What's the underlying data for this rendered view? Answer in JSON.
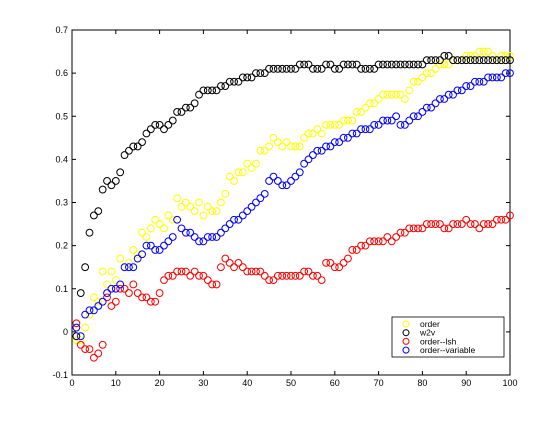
{
  "chart_data": {
    "type": "scatter",
    "title": "",
    "xlabel": "",
    "ylabel": "",
    "xlim": [
      0,
      100
    ],
    "ylim": [
      -0.1,
      0.7
    ],
    "x_ticks": [
      "0",
      "10",
      "20",
      "30",
      "40",
      "50",
      "60",
      "70",
      "80",
      "90",
      "100"
    ],
    "y_ticks": [
      "-0.1",
      "0",
      "0.1",
      "0.2",
      "0.3",
      "0.4",
      "0.5",
      "0.6",
      "0.7"
    ],
    "grid": false,
    "legend_position": "bottom-right",
    "marker": "open-circle",
    "x": [
      1,
      2,
      3,
      4,
      5,
      6,
      7,
      8,
      9,
      10,
      11,
      12,
      13,
      14,
      15,
      16,
      17,
      18,
      19,
      20,
      21,
      22,
      23,
      24,
      25,
      26,
      27,
      28,
      29,
      30,
      31,
      32,
      33,
      34,
      35,
      36,
      37,
      38,
      39,
      40,
      41,
      42,
      43,
      44,
      45,
      46,
      47,
      48,
      49,
      50,
      51,
      52,
      53,
      54,
      55,
      56,
      57,
      58,
      59,
      60,
      61,
      62,
      63,
      64,
      65,
      66,
      67,
      68,
      69,
      70,
      71,
      72,
      73,
      74,
      75,
      76,
      77,
      78,
      79,
      80,
      81,
      82,
      83,
      84,
      85,
      86,
      87,
      88,
      89,
      90,
      91,
      92,
      93,
      94,
      95,
      96,
      97,
      98,
      99,
      100
    ],
    "series": [
      {
        "name": "order",
        "color": "#ffff00",
        "values": [
          -0.02,
          -0.02,
          0.01,
          0.04,
          0.08,
          0.07,
          0.14,
          0.11,
          0.14,
          0.12,
          0.17,
          0.15,
          0.16,
          0.19,
          0.18,
          0.23,
          0.22,
          0.24,
          0.26,
          0.25,
          0.24,
          0.27,
          0.26,
          0.31,
          0.29,
          0.3,
          0.29,
          0.28,
          0.3,
          0.27,
          0.29,
          0.28,
          0.28,
          0.3,
          0.32,
          0.36,
          0.35,
          0.37,
          0.37,
          0.39,
          0.38,
          0.39,
          0.42,
          0.42,
          0.43,
          0.45,
          0.44,
          0.43,
          0.44,
          0.43,
          0.43,
          0.43,
          0.45,
          0.46,
          0.46,
          0.47,
          0.46,
          0.48,
          0.48,
          0.48,
          0.48,
          0.49,
          0.49,
          0.49,
          0.51,
          0.51,
          0.52,
          0.53,
          0.53,
          0.54,
          0.55,
          0.55,
          0.55,
          0.55,
          0.55,
          0.54,
          0.56,
          0.58,
          0.58,
          0.59,
          0.6,
          0.6,
          0.61,
          0.62,
          0.62,
          0.62,
          0.63,
          0.63,
          0.63,
          0.64,
          0.64,
          0.64,
          0.65,
          0.65,
          0.65,
          0.64,
          0.63,
          0.64,
          0.64,
          0.64
        ]
      },
      {
        "name": "w2v",
        "color": "#000000",
        "values": [
          -0.01,
          0.09,
          0.15,
          0.23,
          0.27,
          0.28,
          0.33,
          0.35,
          0.34,
          0.35,
          0.37,
          0.41,
          0.42,
          0.43,
          0.43,
          0.44,
          0.46,
          0.47,
          0.48,
          0.48,
          0.47,
          0.48,
          0.49,
          0.51,
          0.51,
          0.52,
          0.52,
          0.53,
          0.55,
          0.56,
          0.56,
          0.56,
          0.56,
          0.57,
          0.57,
          0.58,
          0.58,
          0.58,
          0.59,
          0.59,
          0.59,
          0.6,
          0.6,
          0.6,
          0.61,
          0.61,
          0.61,
          0.61,
          0.61,
          0.61,
          0.61,
          0.62,
          0.62,
          0.62,
          0.61,
          0.61,
          0.61,
          0.62,
          0.62,
          0.61,
          0.61,
          0.62,
          0.62,
          0.62,
          0.62,
          0.61,
          0.61,
          0.61,
          0.61,
          0.62,
          0.62,
          0.62,
          0.62,
          0.62,
          0.62,
          0.62,
          0.62,
          0.62,
          0.62,
          0.62,
          0.63,
          0.63,
          0.63,
          0.63,
          0.64,
          0.64,
          0.63,
          0.63,
          0.63,
          0.63,
          0.63,
          0.63,
          0.63,
          0.63,
          0.63,
          0.63,
          0.63,
          0.63,
          0.63,
          0.63
        ]
      },
      {
        "name": "order--lsh",
        "color": "#ff0000",
        "values": [
          0.02,
          -0.03,
          -0.04,
          -0.04,
          -0.06,
          -0.05,
          -0.03,
          0.08,
          0.06,
          0.07,
          0.1,
          0.1,
          0.09,
          0.11,
          0.09,
          0.08,
          0.08,
          0.07,
          0.07,
          0.09,
          0.12,
          0.13,
          0.13,
          0.14,
          0.14,
          0.14,
          0.13,
          0.14,
          0.13,
          0.13,
          0.12,
          0.11,
          0.11,
          0.15,
          0.17,
          0.16,
          0.15,
          0.16,
          0.15,
          0.14,
          0.14,
          0.14,
          0.14,
          0.13,
          0.12,
          0.12,
          0.13,
          0.13,
          0.13,
          0.13,
          0.13,
          0.13,
          0.14,
          0.14,
          0.13,
          0.13,
          0.12,
          0.16,
          0.16,
          0.15,
          0.15,
          0.16,
          0.17,
          0.19,
          0.19,
          0.2,
          0.2,
          0.21,
          0.21,
          0.21,
          0.21,
          0.22,
          0.21,
          0.22,
          0.23,
          0.23,
          0.24,
          0.24,
          0.24,
          0.24,
          0.25,
          0.25,
          0.25,
          0.25,
          0.24,
          0.24,
          0.25,
          0.25,
          0.25,
          0.26,
          0.25,
          0.25,
          0.24,
          0.25,
          0.25,
          0.25,
          0.26,
          0.26,
          0.26,
          0.27
        ]
      },
      {
        "name": "order--variable",
        "color": "#0000ff",
        "values": [
          0.01,
          -0.01,
          0.04,
          0.05,
          0.05,
          0.06,
          0.07,
          0.09,
          0.1,
          0.1,
          0.11,
          0.15,
          0.15,
          0.15,
          0.17,
          0.18,
          0.2,
          0.2,
          0.19,
          0.19,
          0.2,
          0.21,
          0.22,
          0.26,
          0.24,
          0.23,
          0.23,
          0.22,
          0.21,
          0.21,
          0.22,
          0.22,
          0.22,
          0.23,
          0.24,
          0.25,
          0.26,
          0.26,
          0.27,
          0.28,
          0.29,
          0.3,
          0.31,
          0.32,
          0.35,
          0.36,
          0.35,
          0.34,
          0.34,
          0.35,
          0.36,
          0.37,
          0.39,
          0.4,
          0.41,
          0.42,
          0.42,
          0.43,
          0.43,
          0.44,
          0.44,
          0.45,
          0.45,
          0.46,
          0.46,
          0.47,
          0.47,
          0.47,
          0.48,
          0.48,
          0.49,
          0.49,
          0.49,
          0.5,
          0.48,
          0.48,
          0.49,
          0.5,
          0.5,
          0.51,
          0.52,
          0.52,
          0.53,
          0.54,
          0.54,
          0.55,
          0.55,
          0.56,
          0.56,
          0.57,
          0.57,
          0.58,
          0.58,
          0.58,
          0.59,
          0.59,
          0.59,
          0.59,
          0.6,
          0.6
        ]
      }
    ]
  }
}
